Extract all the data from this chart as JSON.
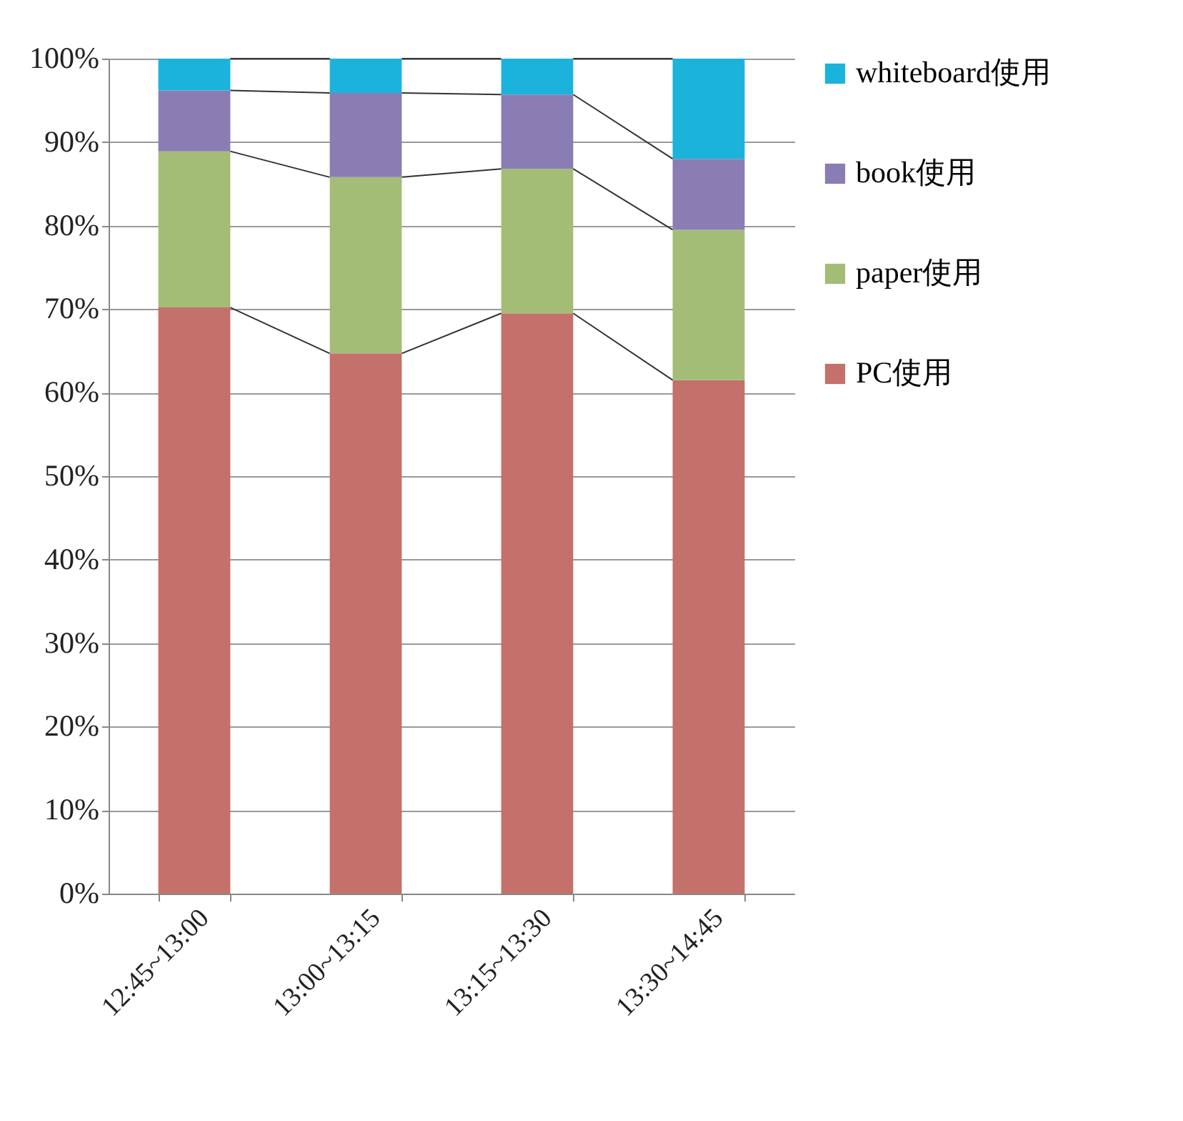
{
  "chart_data": {
    "type": "bar",
    "stacked": true,
    "categories": [
      "12:45~13:00",
      "13:00~13:15",
      "13:15~13:30",
      "13:30~14:45"
    ],
    "series": [
      {
        "name": "PC使用",
        "color": "#c3716a",
        "values": [
          70.2,
          64.7,
          69.5,
          61.5
        ]
      },
      {
        "name": "paper使用",
        "color": "#a3bd77",
        "values": [
          18.7,
          21.1,
          17.3,
          18.0
        ]
      },
      {
        "name": "book使用",
        "color": "#8a7db3",
        "values": [
          7.3,
          10.1,
          8.9,
          8.5
        ]
      },
      {
        "name": "whiteboard使用",
        "color": "#1bb3dc",
        "values": [
          3.8,
          4.1,
          4.3,
          12.0
        ]
      }
    ],
    "ylim": [
      0,
      100
    ],
    "yticks": [
      {
        "value": 0,
        "label": "0%"
      },
      {
        "value": 10,
        "label": "10%"
      },
      {
        "value": 20,
        "label": "20%"
      },
      {
        "value": 30,
        "label": "30%"
      },
      {
        "value": 40,
        "label": "40%"
      },
      {
        "value": 50,
        "label": "50%"
      },
      {
        "value": 60,
        "label": "60%"
      },
      {
        "value": 70,
        "label": "70%"
      },
      {
        "value": 80,
        "label": "80%"
      },
      {
        "value": 90,
        "label": "90%"
      },
      {
        "value": 100,
        "label": "100%"
      }
    ],
    "grid": "y",
    "legend": "right"
  }
}
